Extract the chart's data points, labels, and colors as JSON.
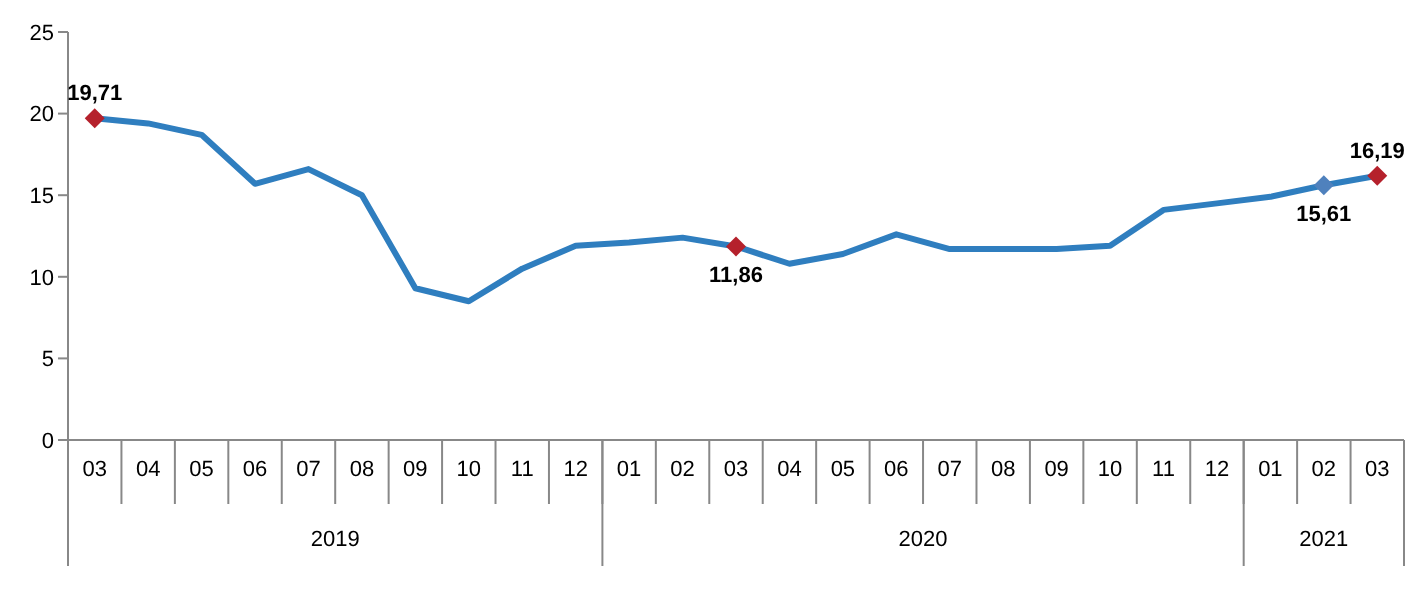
{
  "chart_data": {
    "type": "line",
    "categories": [
      "03",
      "04",
      "05",
      "06",
      "07",
      "08",
      "09",
      "10",
      "11",
      "12",
      "01",
      "02",
      "03",
      "04",
      "05",
      "06",
      "07",
      "08",
      "09",
      "10",
      "11",
      "12",
      "01",
      "02",
      "03"
    ],
    "annotations": [
      "2019",
      "2020",
      "2021"
    ],
    "series": [
      {
        "color": "#2f7ebf",
        "colors": [
          "#b5212c",
          null,
          null,
          null,
          null,
          null,
          null,
          null,
          null,
          null,
          null,
          null,
          "#b5212c",
          null,
          null,
          null,
          null,
          null,
          null,
          null,
          null,
          null,
          null,
          "#4f81bd",
          "#b5212c"
        ],
        "values": [
          19.71,
          19.4,
          18.7,
          15.7,
          16.6,
          15.0,
          9.3,
          8.5,
          10.5,
          11.9,
          12.1,
          12.4,
          11.86,
          10.8,
          11.4,
          12.6,
          11.7,
          11.7,
          11.7,
          11.9,
          14.1,
          14.5,
          14.9,
          15.61,
          16.19
        ],
        "value_labels": [
          "19,71",
          null,
          null,
          null,
          null,
          null,
          null,
          null,
          null,
          null,
          null,
          null,
          "11,86",
          null,
          null,
          null,
          null,
          null,
          null,
          null,
          null,
          null,
          null,
          "15,61",
          "16,19"
        ]
      }
    ],
    "ylim": [
      0,
      25
    ],
    "yticks": [
      0,
      5,
      10,
      15,
      20,
      25
    ]
  }
}
